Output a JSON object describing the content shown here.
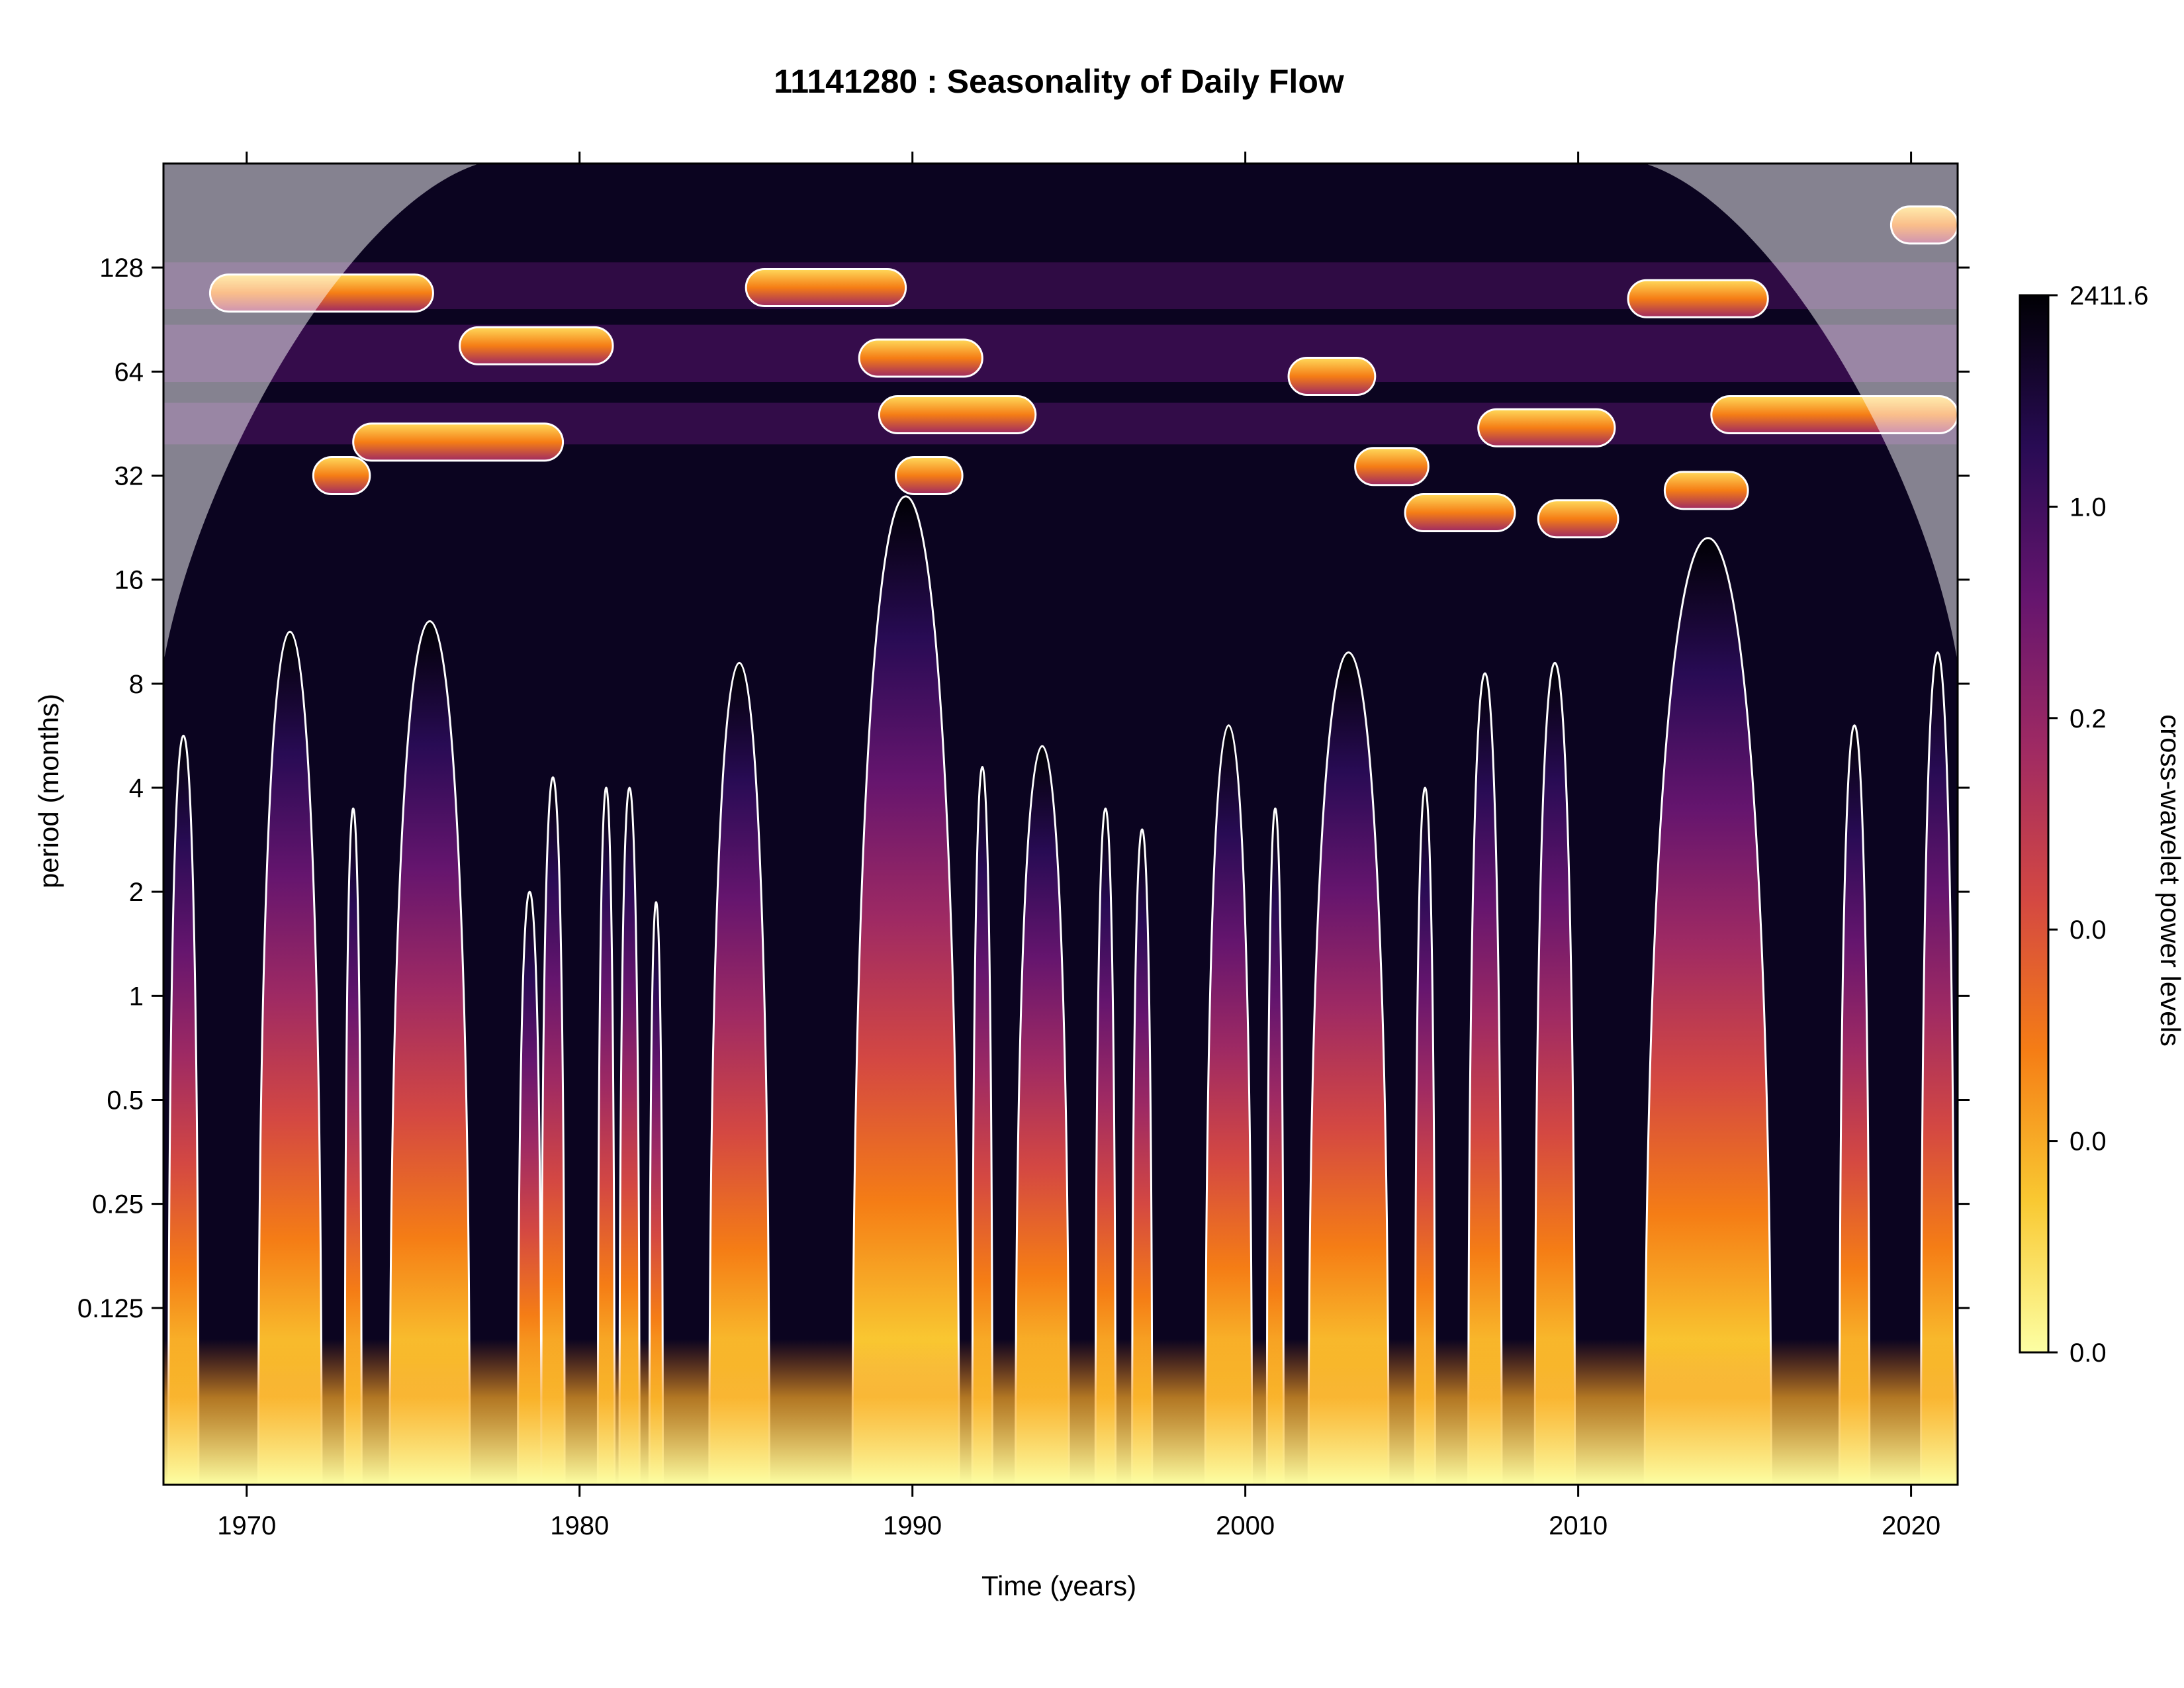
{
  "chart_data": {
    "type": "heatmap",
    "title": "11141280 : Seasonality of Daily Flow",
    "xlabel": "Time (years)",
    "ylabel": "period (months)",
    "xlim": [
      1967.5,
      2021.4
    ],
    "ylim_log2": [
      -4.7,
      8.0
    ],
    "x_ticks": [
      1970,
      1980,
      1990,
      2000,
      2010,
      2020
    ],
    "y_ticks": [
      {
        "value": 0.125,
        "label": "0.125"
      },
      {
        "value": 0.25,
        "label": "0.25"
      },
      {
        "value": 0.5,
        "label": "0.5"
      },
      {
        "value": 1,
        "label": "1"
      },
      {
        "value": 2,
        "label": "2"
      },
      {
        "value": 4,
        "label": "4"
      },
      {
        "value": 8,
        "label": "8"
      },
      {
        "value": 16,
        "label": "16"
      },
      {
        "value": 32,
        "label": "32"
      },
      {
        "value": 64,
        "label": "64"
      },
      {
        "value": 128,
        "label": "128"
      }
    ],
    "colorbar": {
      "label": "cross-wavelet power levels",
      "tick_labels": [
        "0.0",
        "0.0",
        "0.0",
        "0.2",
        "1.0",
        "2411.6"
      ],
      "colors": [
        "#fcffa4",
        "#f9c932",
        "#f57d15",
        "#d44842",
        "#9f2a63",
        "#65156e",
        "#280b54",
        "#000004"
      ]
    },
    "power_bursts": [
      {
        "t": 1968.1,
        "w": 0.45,
        "top": 2.5
      },
      {
        "t": 1971.3,
        "w": 0.95,
        "top": 3.5
      },
      {
        "t": 1973.2,
        "w": 0.25,
        "top": 1.8
      },
      {
        "t": 1975.5,
        "w": 1.2,
        "top": 3.6
      },
      {
        "t": 1978.5,
        "w": 0.35,
        "top": 1.0
      },
      {
        "t": 1979.2,
        "w": 0.35,
        "top": 2.1
      },
      {
        "t": 1980.8,
        "w": 0.25,
        "top": 2.0
      },
      {
        "t": 1981.5,
        "w": 0.3,
        "top": 2.0
      },
      {
        "t": 1982.3,
        "w": 0.2,
        "top": 0.9
      },
      {
        "t": 1984.8,
        "w": 0.9,
        "top": 3.2
      },
      {
        "t": 1989.8,
        "w": 1.6,
        "top": 4.8
      },
      {
        "t": 1992.1,
        "w": 0.3,
        "top": 2.2
      },
      {
        "t": 1993.9,
        "w": 0.8,
        "top": 2.4
      },
      {
        "t": 1995.8,
        "w": 0.3,
        "top": 1.8
      },
      {
        "t": 1996.9,
        "w": 0.3,
        "top": 1.6
      },
      {
        "t": 1999.5,
        "w": 0.7,
        "top": 2.6
      },
      {
        "t": 2000.9,
        "w": 0.25,
        "top": 1.8
      },
      {
        "t": 2003.1,
        "w": 1.2,
        "top": 3.3
      },
      {
        "t": 2005.4,
        "w": 0.3,
        "top": 2.0
      },
      {
        "t": 2007.2,
        "w": 0.5,
        "top": 3.1
      },
      {
        "t": 2009.3,
        "w": 0.6,
        "top": 3.2
      },
      {
        "t": 2013.9,
        "w": 1.9,
        "top": 4.4
      },
      {
        "t": 2018.3,
        "w": 0.45,
        "top": 2.6
      },
      {
        "t": 2020.8,
        "w": 0.5,
        "top": 3.3
      }
    ],
    "significance_contours": [
      {
        "x0": 1968.9,
        "x1": 1975.6,
        "p": 108
      },
      {
        "x0": 1976.4,
        "x1": 1981.0,
        "p": 76
      },
      {
        "x0": 1973.2,
        "x1": 1979.5,
        "p": 40
      },
      {
        "x0": 1972.0,
        "x1": 1973.7,
        "p": 32
      },
      {
        "x0": 1985.0,
        "x1": 1989.8,
        "p": 112
      },
      {
        "x0": 1988.4,
        "x1": 1992.1,
        "p": 70
      },
      {
        "x0": 1989.0,
        "x1": 1993.7,
        "p": 48
      },
      {
        "x0": 1989.5,
        "x1": 1991.5,
        "p": 32
      },
      {
        "x0": 2011.5,
        "x1": 2015.7,
        "p": 104
      },
      {
        "x0": 2001.3,
        "x1": 2003.9,
        "p": 62
      },
      {
        "x0": 2007.0,
        "x1": 2011.1,
        "p": 44
      },
      {
        "x0": 2014.0,
        "x1": 2021.4,
        "p": 48
      },
      {
        "x0": 2003.3,
        "x1": 2005.5,
        "p": 34
      },
      {
        "x0": 2004.8,
        "x1": 2008.1,
        "p": 25
      },
      {
        "x0": 2008.8,
        "x1": 2011.2,
        "p": 24
      },
      {
        "x0": 2012.6,
        "x1": 2015.1,
        "p": 29
      },
      {
        "x0": 2019.4,
        "x1": 2021.4,
        "p": 170
      }
    ]
  }
}
